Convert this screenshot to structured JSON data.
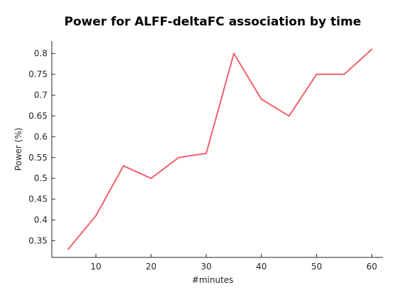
{
  "chart_data": {
    "type": "line",
    "title": "Power for ALFF-deltaFC association by time",
    "xlabel": "#minutes",
    "ylabel": "Power (%)",
    "xlim": [
      2,
      62
    ],
    "ylim": [
      0.31,
      0.83
    ],
    "x_ticks": [
      10,
      20,
      30,
      40,
      50,
      60
    ],
    "y_ticks": [
      0.35,
      0.4,
      0.45,
      0.5,
      0.55,
      0.6,
      0.65,
      0.7,
      0.75,
      0.8
    ],
    "x_tick_labels": [
      "10",
      "20",
      "30",
      "40",
      "50",
      "60"
    ],
    "y_tick_labels": [
      "0.35",
      "0.4",
      "0.45",
      "0.5",
      "0.55",
      "0.6",
      "0.65",
      "0.7",
      "0.75",
      "0.8"
    ],
    "grid": false,
    "series": [
      {
        "color": "#f4606c",
        "x": [
          5,
          10,
          15,
          20,
          25,
          30,
          35,
          40,
          45,
          50,
          55,
          60
        ],
        "values": [
          0.33,
          0.41,
          0.53,
          0.5,
          0.55,
          0.56,
          0.8,
          0.69,
          0.65,
          0.75,
          0.75,
          0.81
        ]
      }
    ]
  }
}
